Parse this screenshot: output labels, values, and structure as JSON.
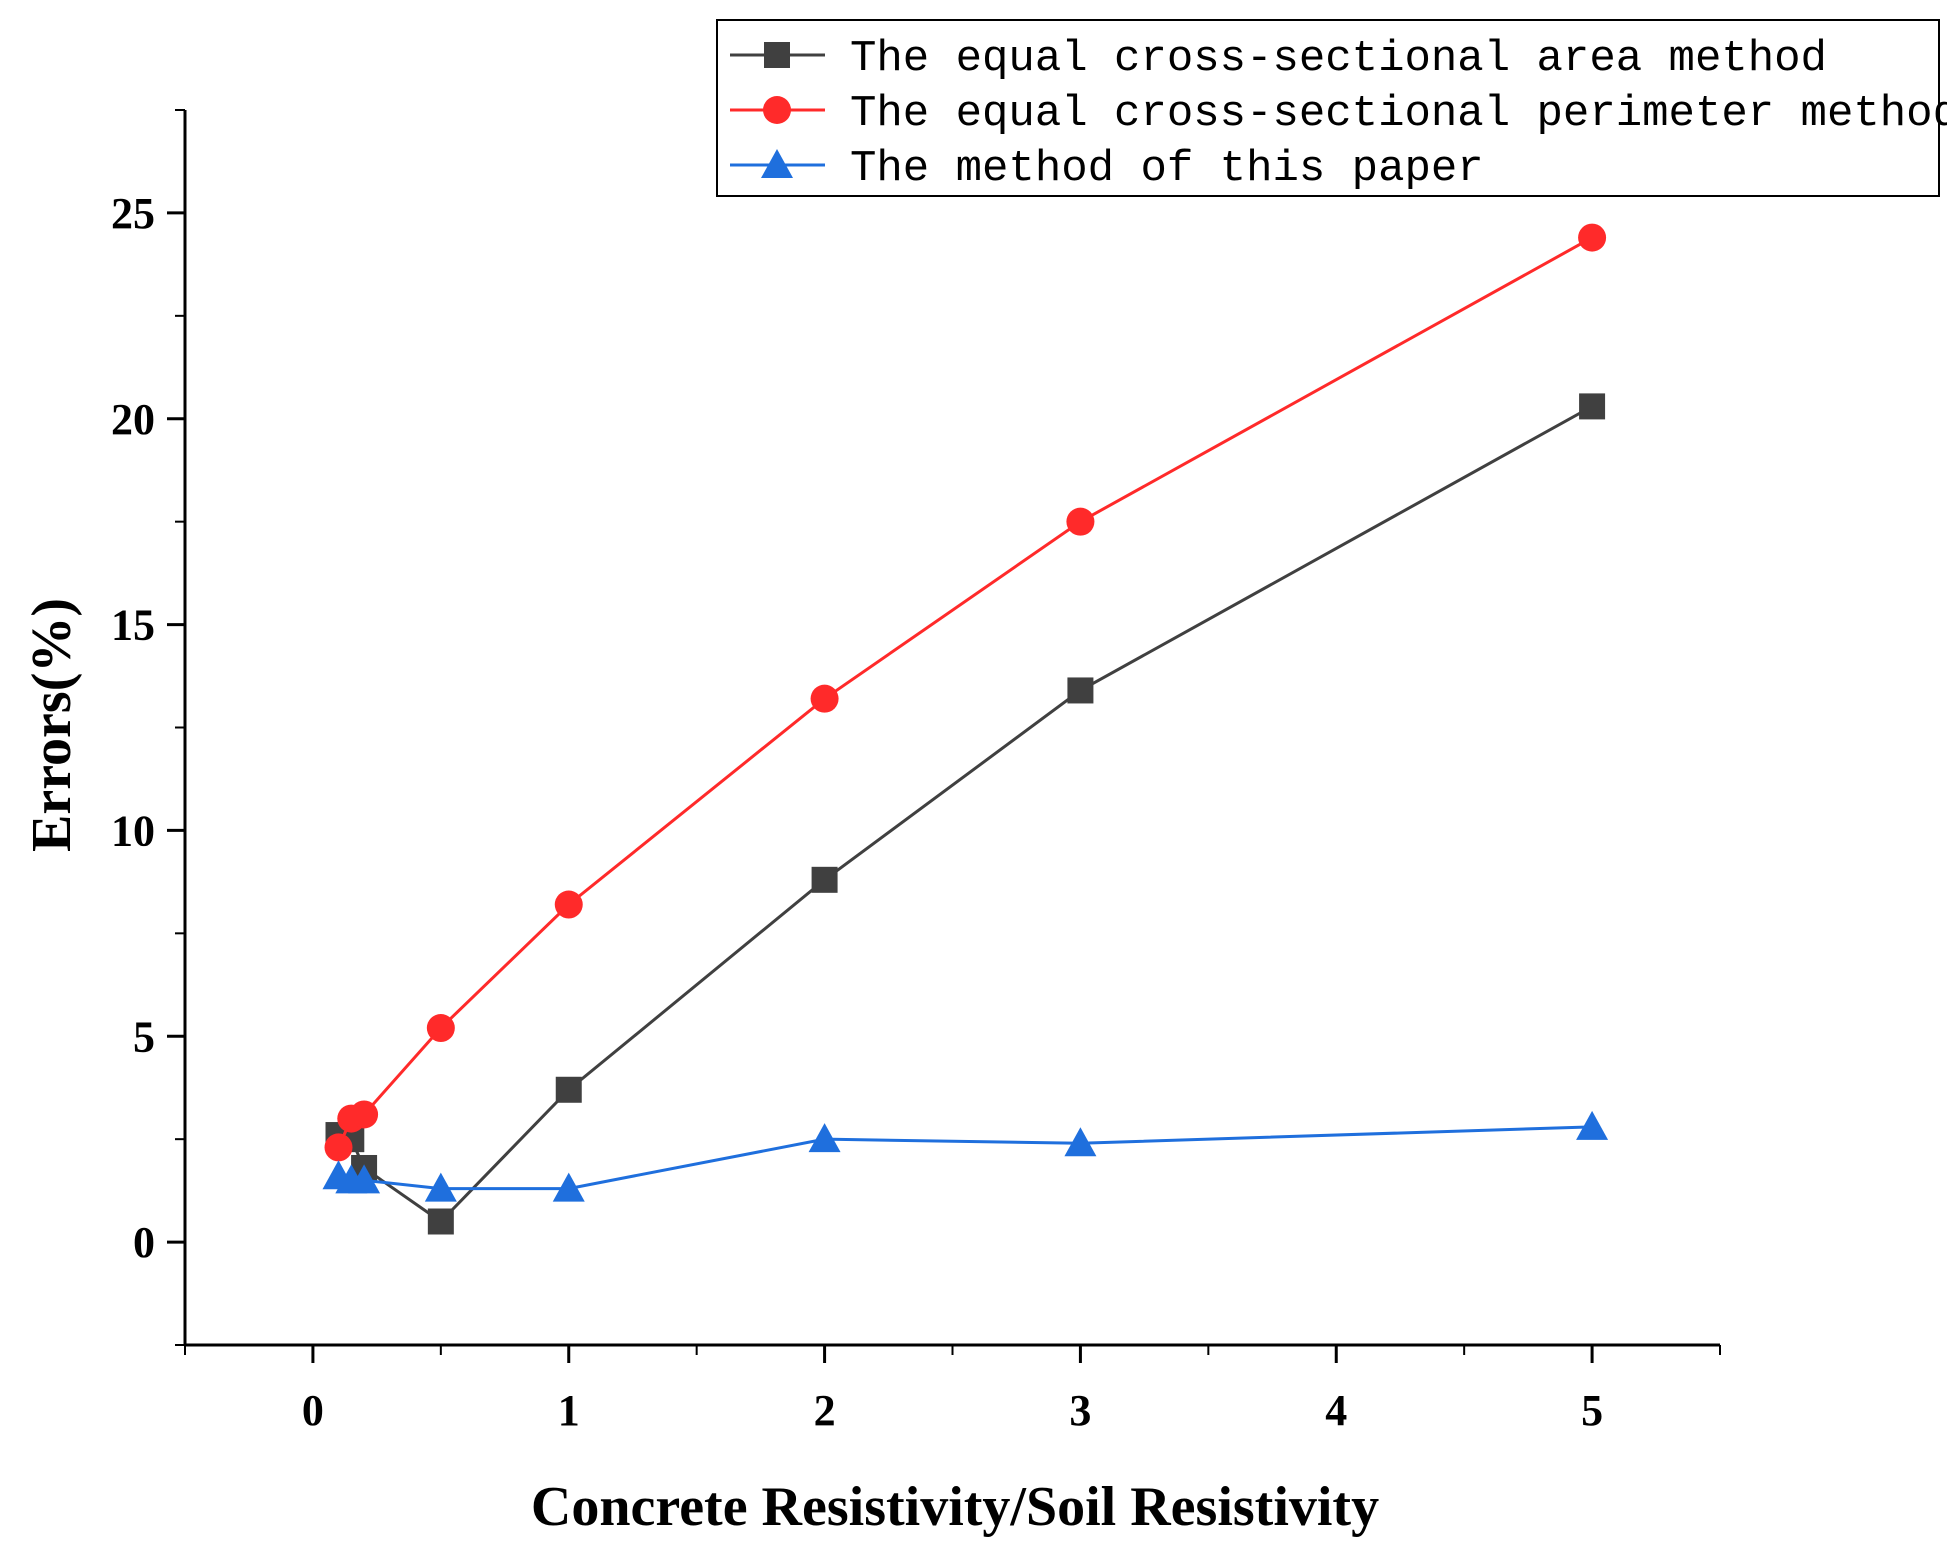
{
  "chart_data": {
    "type": "line",
    "title": "",
    "xlabel": "Concrete Resistivity/Soil Resistivity",
    "ylabel": "Errors(%)",
    "xlim": [
      -0.5,
      5.5
    ],
    "ylim": [
      -2.5,
      27.5
    ],
    "xticks": [
      0,
      1,
      2,
      3,
      4,
      5
    ],
    "xtick_labels": [
      "0",
      "1",
      "2",
      "3",
      "4",
      "5"
    ],
    "yticks": [
      0,
      5,
      10,
      15,
      20,
      25
    ],
    "ytick_labels": [
      "0",
      "5",
      "10",
      "15",
      "20",
      "25"
    ],
    "grid": false,
    "legend_position": "top-right",
    "series": [
      {
        "name": "The equal cross-sectional area method",
        "color": "#404040",
        "marker": "square",
        "x": [
          0.1,
          0.15,
          0.2,
          0.5,
          1,
          2,
          3,
          5
        ],
        "y": [
          2.6,
          2.5,
          1.8,
          0.5,
          3.7,
          8.8,
          13.4,
          20.3
        ]
      },
      {
        "name": "The equal cross-sectional perimeter method",
        "color": "#ff2a2a",
        "marker": "circle",
        "x": [
          0.1,
          0.15,
          0.2,
          0.5,
          1,
          2,
          3,
          5
        ],
        "y": [
          2.3,
          3.0,
          3.1,
          5.2,
          8.2,
          13.2,
          17.5,
          24.4
        ]
      },
      {
        "name": "The method of this paper",
        "color": "#1f6fdd",
        "marker": "triangle",
        "x": [
          0.1,
          0.15,
          0.2,
          0.5,
          1,
          2,
          3,
          5
        ],
        "y": [
          1.6,
          1.5,
          1.5,
          1.3,
          1.3,
          2.5,
          2.4,
          2.8
        ]
      }
    ]
  }
}
